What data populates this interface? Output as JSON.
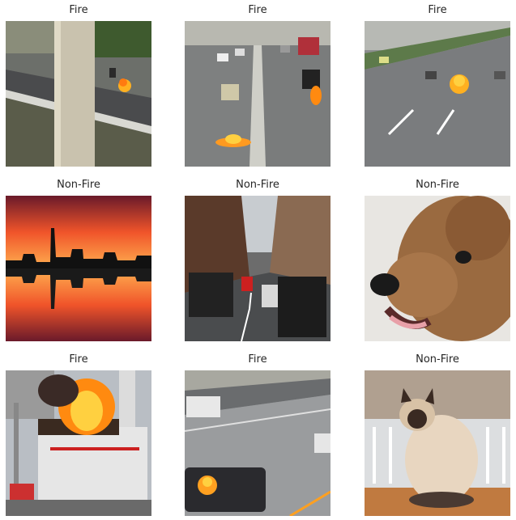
{
  "grid": {
    "panels": [
      {
        "label": "Fire",
        "scene": "highway-overpass-with-pillar-and-small-fire"
      },
      {
        "label": "Fire",
        "scene": "multi-lane-road-traffic-with-fires"
      },
      {
        "label": "Fire",
        "scene": "highway-with-median-hedge-and-fire"
      },
      {
        "label": "Non-Fire",
        "scene": "city-skyline-sunset-reflection"
      },
      {
        "label": "Non-Fire",
        "scene": "narrow-city-street-traffic"
      },
      {
        "label": "Non-Fire",
        "scene": "curly-brown-dog-closeup"
      },
      {
        "label": "Fire",
        "scene": "burning-building"
      },
      {
        "label": "Fire",
        "scene": "street-with-cars-and-fire"
      },
      {
        "label": "Non-Fire",
        "scene": "siamese-cat-on-table"
      }
    ]
  },
  "colors": {
    "fire": "#ffb020",
    "title_text": "#262626"
  }
}
